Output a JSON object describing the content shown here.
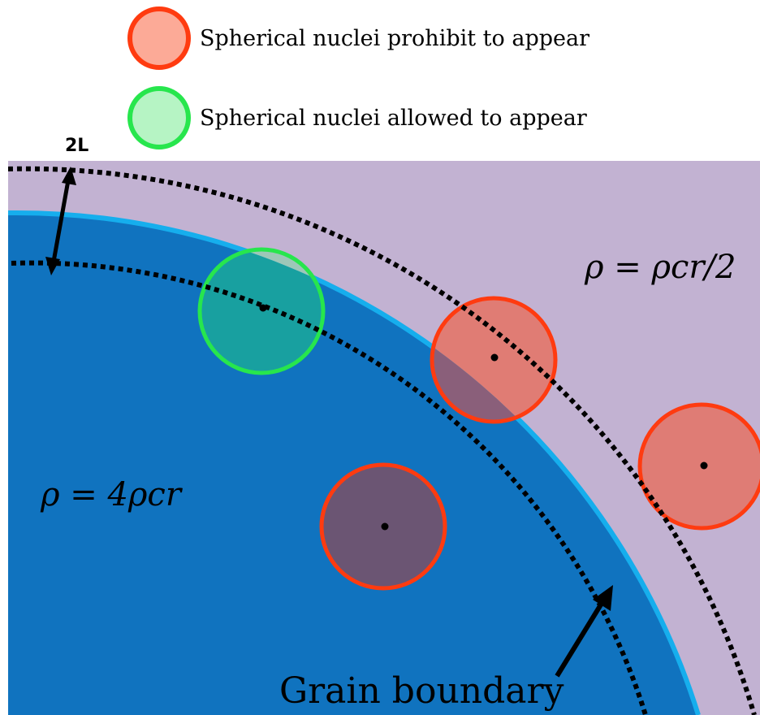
{
  "legend": {
    "items": [
      {
        "label": "Spherical nuclei prohibit to appear",
        "fill": "#fcaa97",
        "stroke": "#ff3b10"
      },
      {
        "label": "Spherical nuclei allowed to appear",
        "fill": "#b6f4c4",
        "stroke": "#27e64d"
      }
    ]
  },
  "labels": {
    "thickness": "2L",
    "outer_density": "ρ = ρcr/2",
    "inner_density": "ρ = 4ρcr",
    "boundary": "Grain boundary"
  },
  "colors": {
    "outer_region": "#c2b2d2",
    "inner_region": "#1073bf",
    "boundary_line": "#16aeed",
    "prohibited_stroke": "#ff3b10",
    "prohibited_fill": "#e87f73",
    "prohibited_fill_inner": "#6b5573",
    "allowed_stroke": "#27e64d",
    "allowed_fill": "#18a0a0"
  }
}
